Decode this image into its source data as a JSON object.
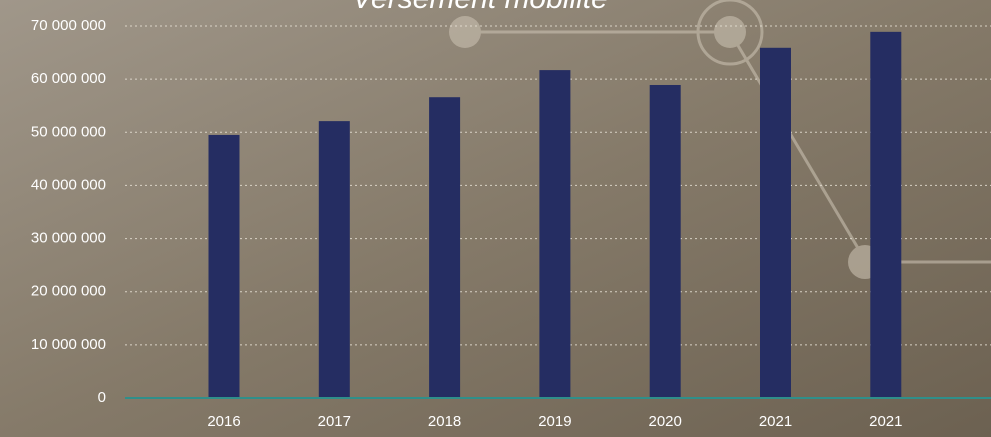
{
  "chart_data": {
    "type": "bar",
    "title": "Versement mobilité",
    "categories": [
      "2016",
      "2017",
      "2018",
      "2019",
      "2020",
      "2021",
      "2021"
    ],
    "values": [
      49500000,
      52100000,
      56600000,
      61700000,
      58900000,
      65900000,
      68900000
    ],
    "color": "#252d62",
    "ylim": [
      0,
      70000000
    ],
    "yticks": [
      0,
      {
        "value": 10000000,
        "label": "10 000 000"
      },
      {
        "value": 20000000,
        "label": "20 000 000"
      },
      {
        "value": 30000000,
        "label": "30 000 000"
      },
      {
        "value": 40000000,
        "label": "40 000 000"
      },
      {
        "value": 50000000,
        "label": "50 000 000"
      },
      {
        "value": 60000000,
        "label": "60 000 000"
      },
      {
        "value": 70000000,
        "label": "70 000 000"
      }
    ],
    "grid": true
  }
}
